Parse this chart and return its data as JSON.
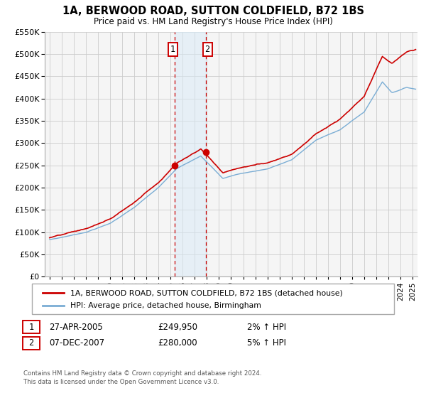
{
  "title": "1A, BERWOOD ROAD, SUTTON COLDFIELD, B72 1BS",
  "subtitle": "Price paid vs. HM Land Registry's House Price Index (HPI)",
  "legend_label_red": "1A, BERWOOD ROAD, SUTTON COLDFIELD, B72 1BS (detached house)",
  "legend_label_blue": "HPI: Average price, detached house, Birmingham",
  "transaction1_date": "27-APR-2005",
  "transaction1_price": "£249,950",
  "transaction1_hpi": "2% ↑ HPI",
  "transaction2_date": "07-DEC-2007",
  "transaction2_price": "£280,000",
  "transaction2_hpi": "5% ↑ HPI",
  "footer_line1": "Contains HM Land Registry data © Crown copyright and database right 2024.",
  "footer_line2": "This data is licensed under the Open Government Licence v3.0.",
  "ylim": [
    0,
    550000
  ],
  "yticks": [
    0,
    50000,
    100000,
    150000,
    200000,
    250000,
    300000,
    350000,
    400000,
    450000,
    500000,
    550000
  ],
  "xlim_start": 1994.6,
  "xlim_end": 2025.4,
  "transaction1_x": 2005.32,
  "transaction1_y": 249950,
  "transaction2_x": 2007.92,
  "transaction2_y": 280000,
  "shaded_x_start": 2005.32,
  "shaded_x_end": 2007.92,
  "red_color": "#cc0000",
  "blue_color": "#7aadd4",
  "shade_color": "#d8eaf7",
  "grid_color": "#cccccc",
  "bg_color": "#f5f5f5"
}
